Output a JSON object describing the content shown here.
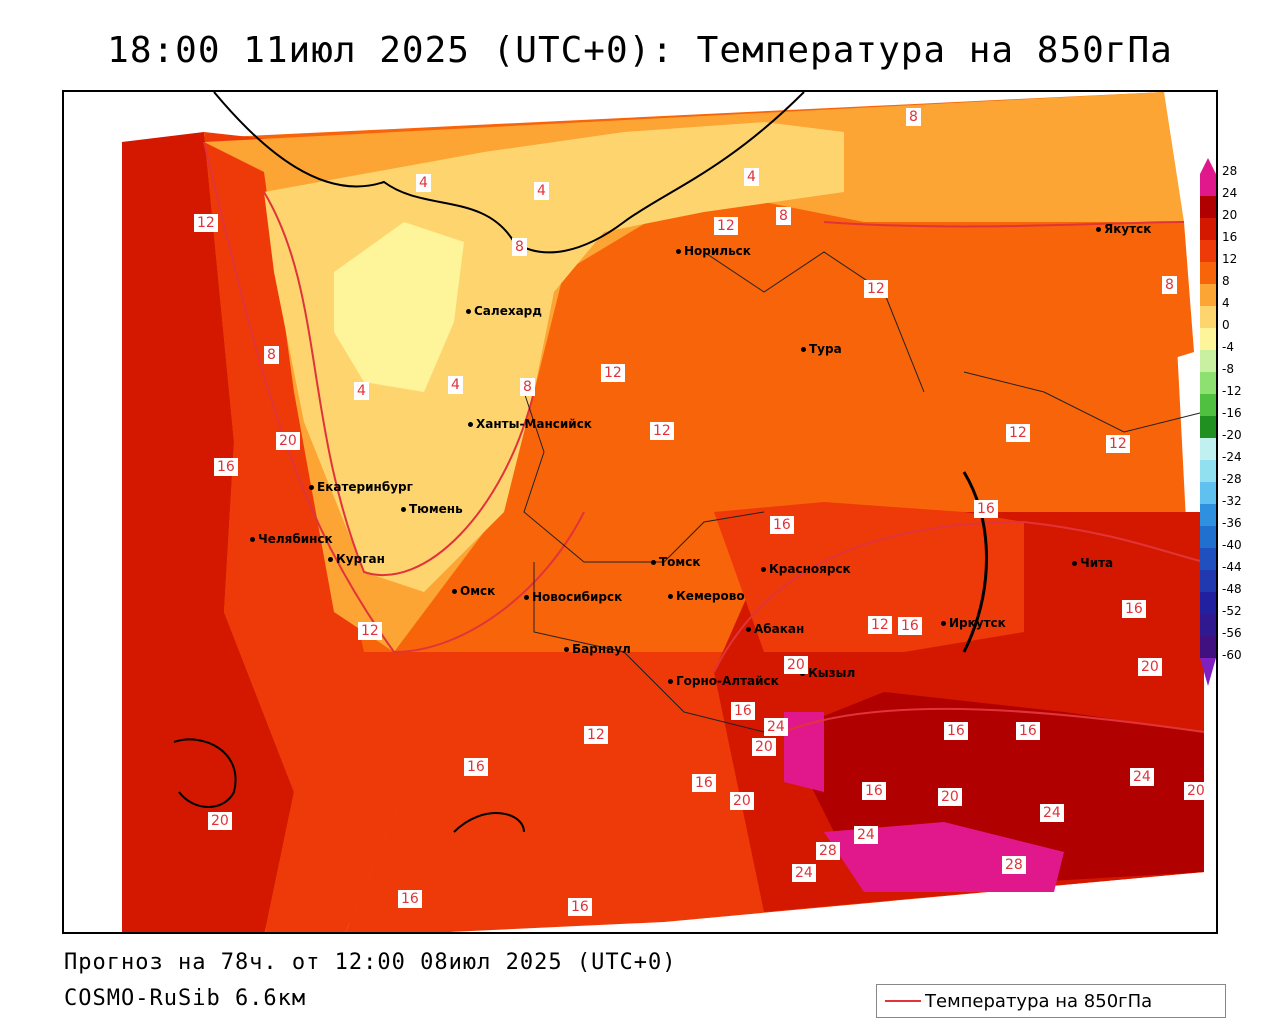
{
  "title": "18:00 11июл 2025 (UTC+0): Температура на 850гПа",
  "footer": {
    "forecast": "Прогноз на 78ч. от 12:00 08июл 2025 (UTC+0)",
    "model": "COSMO-RuSib 6.6км"
  },
  "legend": {
    "label": "Температура на 850гПа",
    "line_color": "#e0343a"
  },
  "scale_ticks": [
    "28",
    "24",
    "20",
    "16",
    "12",
    "8",
    "4",
    "0",
    "-4",
    "-8",
    "-12",
    "-16",
    "-20",
    "-24",
    "-28",
    "-32",
    "-36",
    "-40",
    "-44",
    "-48",
    "-52",
    "-56",
    "-60"
  ],
  "colors": {
    "t28": "#e0188c",
    "t24": "#b00000",
    "t20": "#d41800",
    "t16": "#ee3a08",
    "t12": "#f8640a",
    "t8": "#fca434",
    "t4": "#fed46e",
    "t0": "#fef49a",
    "contour": "#e0343a"
  },
  "cities": [
    {
      "name": "Якутск"
    },
    {
      "name": "Норильск"
    },
    {
      "name": "Салехард"
    },
    {
      "name": "Тура"
    },
    {
      "name": "Ханты-Мансийск"
    },
    {
      "name": "Екатеринбург"
    },
    {
      "name": "Тюмень"
    },
    {
      "name": "Челябинск"
    },
    {
      "name": "Курган"
    },
    {
      "name": "Омск"
    },
    {
      "name": "Томск"
    },
    {
      "name": "Красноярск"
    },
    {
      "name": "Новосибирск"
    },
    {
      "name": "Кемерово"
    },
    {
      "name": "Абакан"
    },
    {
      "name": "Барнаул"
    },
    {
      "name": "Горно-Алтайск"
    },
    {
      "name": "Кызыл"
    },
    {
      "name": "Иркутск"
    },
    {
      "name": "Чита"
    }
  ],
  "contour_labels": [
    "8",
    "4",
    "4",
    "4",
    "12",
    "12",
    "8",
    "8",
    "8",
    "12",
    "8",
    "12",
    "12",
    "4",
    "4",
    "12",
    "8",
    "16",
    "12",
    "16",
    "16",
    "12",
    "12",
    "16",
    "16",
    "20",
    "16",
    "16",
    "20",
    "24",
    "20",
    "12",
    "16",
    "16",
    "16",
    "20",
    "16",
    "20",
    "24",
    "24",
    "20",
    "28",
    "24",
    "28",
    "24",
    "20",
    "20",
    "16",
    "16"
  ]
}
